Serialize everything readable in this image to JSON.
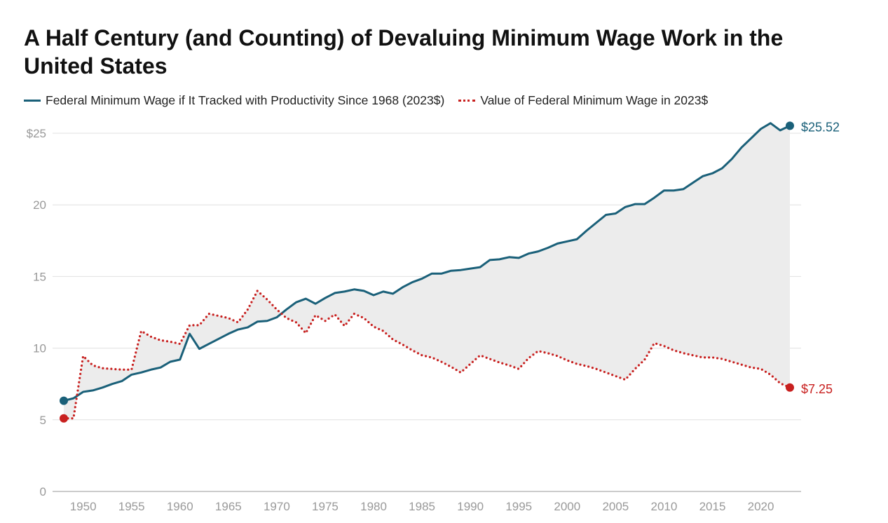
{
  "chart_data": {
    "type": "line",
    "title": "A Half Century (and Counting) of Devaluing Minimum Wage Work in the United States",
    "xlabel": "",
    "ylabel": "",
    "ylim": [
      0,
      25
    ],
    "xlim": [
      1948,
      2023
    ],
    "y_ticks": [
      "0",
      "5",
      "10",
      "15",
      "20",
      "$25"
    ],
    "y_tick_values": [
      0,
      5,
      10,
      15,
      20,
      25
    ],
    "x_ticks": [
      "1950",
      "1955",
      "1960",
      "1965",
      "1970",
      "1975",
      "1980",
      "1985",
      "1990",
      "1995",
      "2000",
      "2005",
      "2010",
      "2015",
      "2020"
    ],
    "grid": true,
    "legend_position": "top-left",
    "shaded_area_between_series": true,
    "x": [
      1948,
      1949,
      1950,
      1951,
      1952,
      1953,
      1954,
      1955,
      1956,
      1957,
      1958,
      1959,
      1960,
      1961,
      1962,
      1963,
      1964,
      1965,
      1966,
      1967,
      1968,
      1969,
      1970,
      1971,
      1972,
      1973,
      1974,
      1975,
      1976,
      1977,
      1978,
      1979,
      1980,
      1981,
      1982,
      1983,
      1984,
      1985,
      1986,
      1987,
      1988,
      1989,
      1990,
      1991,
      1992,
      1993,
      1994,
      1995,
      1996,
      1997,
      1998,
      1999,
      2000,
      2001,
      2002,
      2003,
      2004,
      2005,
      2006,
      2007,
      2008,
      2009,
      2010,
      2011,
      2012,
      2013,
      2014,
      2015,
      2016,
      2017,
      2018,
      2019,
      2020,
      2021,
      2022,
      2023
    ],
    "series": [
      {
        "name": "Federal Minimum Wage if It Tracked with Productivity Since 1968 (2023$)",
        "color": "#1a6079",
        "style": "solid",
        "end_label": "$25.52",
        "values": [
          6.33,
          6.5,
          6.95,
          7.05,
          7.25,
          7.5,
          7.7,
          8.15,
          8.3,
          8.5,
          8.65,
          9.05,
          9.2,
          11.0,
          9.95,
          10.3,
          10.65,
          11.0,
          11.3,
          11.45,
          11.85,
          11.9,
          12.15,
          12.7,
          13.2,
          13.45,
          13.1,
          13.5,
          13.85,
          13.95,
          14.1,
          14.0,
          13.7,
          13.95,
          13.8,
          14.25,
          14.6,
          14.85,
          15.2,
          15.2,
          15.4,
          15.45,
          15.55,
          15.65,
          16.15,
          16.2,
          16.35,
          16.3,
          16.6,
          16.75,
          17.0,
          17.3,
          17.45,
          17.6,
          18.2,
          18.75,
          19.3,
          19.4,
          19.85,
          20.05,
          20.05,
          20.5,
          21.0,
          21.0,
          21.1,
          21.55,
          22.0,
          22.2,
          22.55,
          23.2,
          24.0,
          24.65,
          25.3,
          25.7,
          25.2,
          25.52
        ]
      },
      {
        "name": "Value of Federal Minimum Wage in 2023$",
        "color": "#c8201f",
        "style": "dotted",
        "end_label": "$7.25",
        "values": [
          5.1,
          5.1,
          9.45,
          8.8,
          8.6,
          8.55,
          8.5,
          8.5,
          11.2,
          10.8,
          10.55,
          10.45,
          10.3,
          11.6,
          11.6,
          12.4,
          12.25,
          12.1,
          11.8,
          12.7,
          14.0,
          13.4,
          12.7,
          12.1,
          11.8,
          11.05,
          12.3,
          11.9,
          12.35,
          11.55,
          12.4,
          12.1,
          11.5,
          11.2,
          10.6,
          10.25,
          9.85,
          9.5,
          9.35,
          9.05,
          8.7,
          8.3,
          8.9,
          9.5,
          9.25,
          9.0,
          8.8,
          8.55,
          9.3,
          9.8,
          9.65,
          9.45,
          9.15,
          8.9,
          8.75,
          8.55,
          8.3,
          8.05,
          7.8,
          8.55,
          9.2,
          10.35,
          10.15,
          9.85,
          9.65,
          9.5,
          9.35,
          9.35,
          9.25,
          9.05,
          8.85,
          8.65,
          8.55,
          8.15,
          7.55,
          7.25
        ]
      }
    ]
  }
}
